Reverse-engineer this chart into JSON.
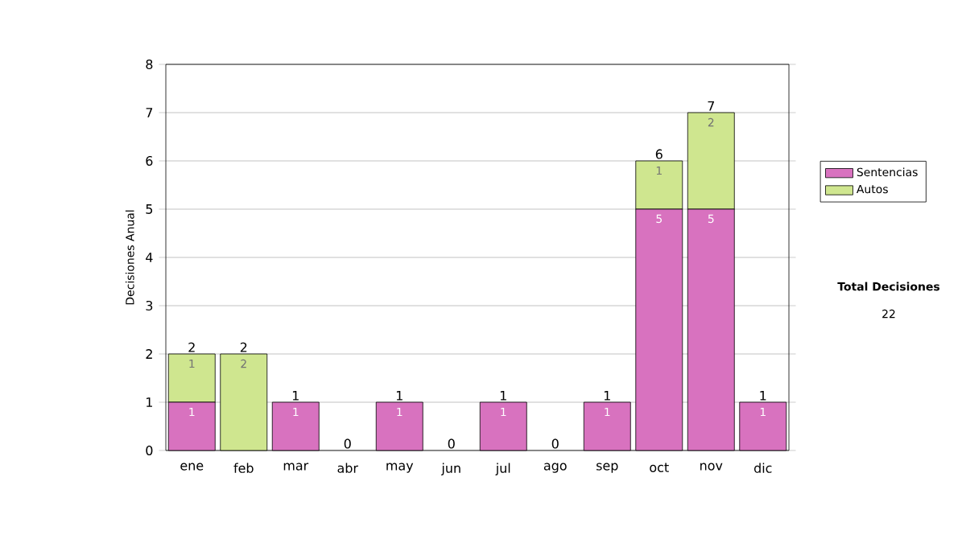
{
  "chart_data": {
    "type": "bar",
    "stacked": true,
    "ylabel": "Decisiones Anual",
    "categories": [
      "ene",
      "feb",
      "mar",
      "abr",
      "may",
      "jun",
      "jul",
      "ago",
      "sep",
      "oct",
      "nov",
      "dic"
    ],
    "series": [
      {
        "name": "Sentencias",
        "color": "#d872bf",
        "values": [
          1,
          0,
          1,
          0,
          1,
          0,
          1,
          0,
          1,
          5,
          5,
          1
        ],
        "value_labels": [
          "1",
          null,
          "1",
          null,
          "1",
          null,
          "1",
          null,
          "1",
          "5",
          "5",
          "1"
        ]
      },
      {
        "name": "Autos",
        "color": "#cfe68f",
        "values": [
          1,
          2,
          0,
          0,
          0,
          0,
          0,
          0,
          0,
          1,
          2,
          0
        ],
        "value_labels": [
          "1",
          "2",
          null,
          null,
          null,
          null,
          null,
          null,
          null,
          "1",
          "2",
          null
        ]
      }
    ],
    "totals": [
      "2",
      "2",
      "1",
      "0",
      "1",
      "0",
      "1",
      "0",
      "1",
      "6",
      "7",
      "1"
    ],
    "ylim": [
      0,
      8
    ],
    "yticks": [
      0,
      1,
      2,
      3,
      4,
      5,
      6,
      7,
      8
    ],
    "grid": "y",
    "legend": "right",
    "annotations": [
      "Total Decisiones",
      "22"
    ]
  }
}
